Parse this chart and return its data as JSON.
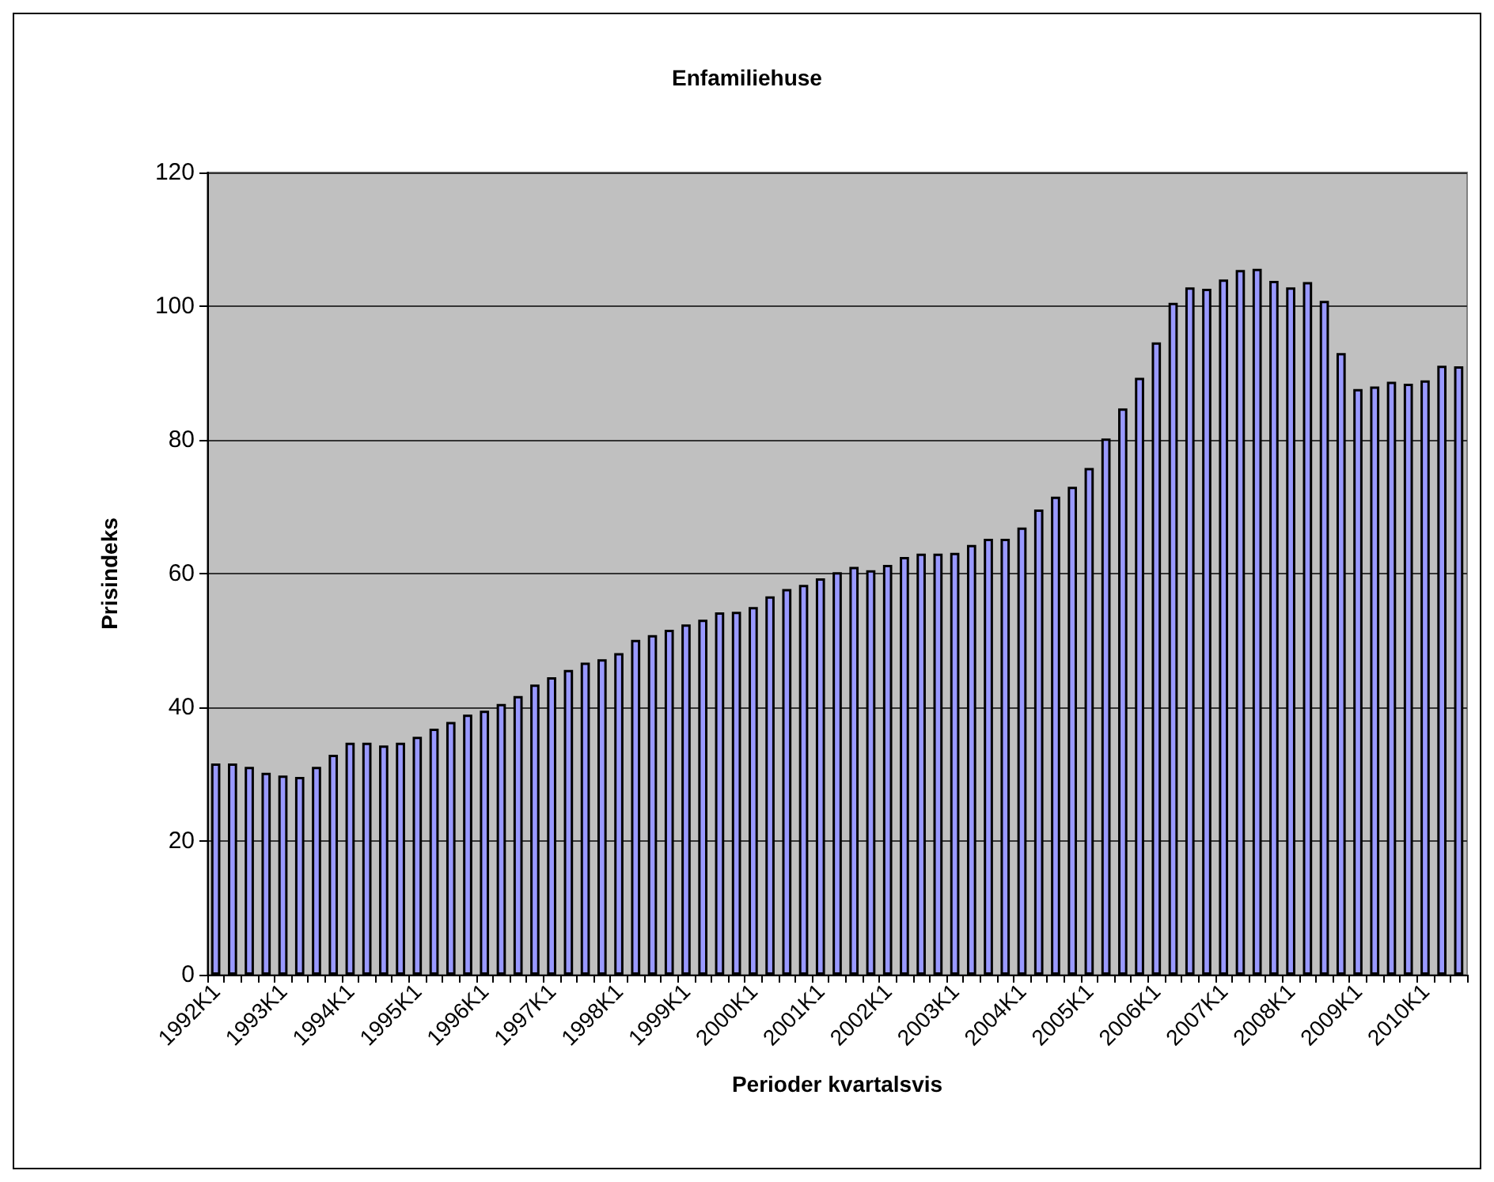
{
  "chart_data": {
    "type": "bar",
    "title": "Enfamiliehuse",
    "xlabel": "Perioder kvartalsvis",
    "ylabel": "Prisindeks",
    "categories": [
      "1992K1",
      null,
      null,
      null,
      "1993K1",
      null,
      null,
      null,
      "1994K1",
      null,
      null,
      null,
      "1995K1",
      null,
      null,
      null,
      "1996K1",
      null,
      null,
      null,
      "1997K1",
      null,
      null,
      null,
      "1998K1",
      null,
      null,
      null,
      "1999K1",
      null,
      null,
      null,
      "2000K1",
      null,
      null,
      null,
      "2001K1",
      null,
      null,
      null,
      "2002K1",
      null,
      null,
      null,
      "2003K1",
      null,
      null,
      null,
      "2004K1",
      null,
      null,
      null,
      "2005K1",
      null,
      null,
      null,
      "2006K1",
      null,
      null,
      null,
      "2007K1",
      null,
      null,
      null,
      "2008K1",
      null,
      null,
      null,
      "2009K1",
      null,
      null,
      null,
      "2010K1",
      null,
      null
    ],
    "values": [
      31.6,
      31.6,
      31.1,
      30.2,
      29.8,
      29.6,
      31.1,
      32.9,
      34.7,
      34.7,
      34.3,
      34.7,
      35.6,
      36.8,
      37.8,
      38.9,
      39.5,
      40.5,
      41.7,
      43.4,
      44.5,
      45.6,
      46.7,
      47.2,
      48.1,
      50.1,
      50.8,
      51.6,
      52.4,
      53.1,
      54.2,
      54.3,
      55,
      56.6,
      57.7,
      58.3,
      59.3,
      60.2,
      61,
      60.5,
      61.3,
      62.5,
      63,
      63,
      63.1,
      64.3,
      65.2,
      65.2,
      66.9,
      69.6,
      71.5,
      73,
      75.8,
      80.2,
      84.7,
      89.3,
      94.6,
      100.5,
      102.8,
      102.6,
      104,
      105.4,
      105.6,
      103.8,
      102.8,
      103.6,
      100.8,
      93,
      87.6,
      88,
      88.7,
      88.4,
      88.9,
      91.1,
      91
    ],
    "color": "#9999ff",
    "ylim": [
      0,
      120
    ],
    "yticks": [
      0,
      20,
      40,
      60,
      80,
      100,
      120
    ],
    "grid": "y"
  }
}
